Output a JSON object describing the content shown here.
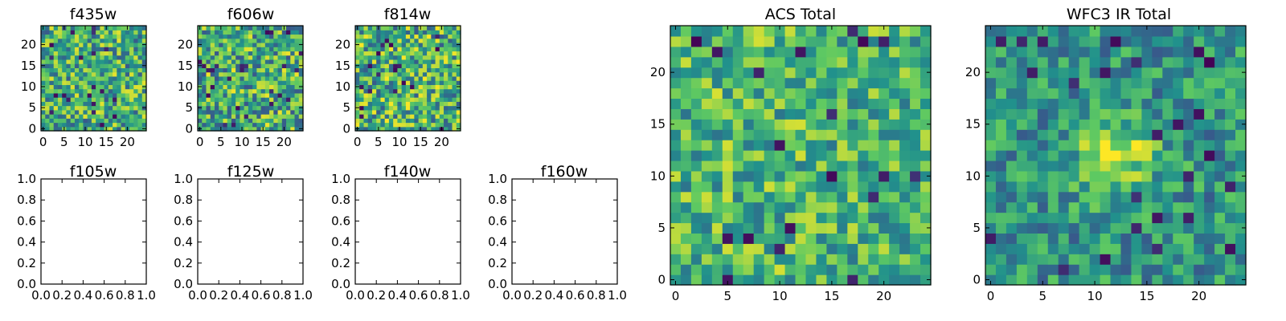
{
  "colormap": [
    "#440154",
    "#3b528b",
    "#21918c",
    "#5ec962",
    "#fde725"
  ],
  "chart_data": [
    {
      "type": "heatmap",
      "title": "f435w",
      "grid": [
        25,
        25
      ],
      "xlim": [
        -0.5,
        24.5
      ],
      "ylim": [
        -0.5,
        24.5
      ],
      "xticks": [
        0,
        5,
        10,
        15,
        20
      ],
      "yticks": [
        0,
        5,
        10,
        15,
        20
      ],
      "seed": 11,
      "bias": 0.62,
      "spread": 0.34
    },
    {
      "type": "heatmap",
      "title": "f606w",
      "grid": [
        25,
        25
      ],
      "xlim": [
        -0.5,
        24.5
      ],
      "ylim": [
        -0.5,
        24.5
      ],
      "xticks": [
        0,
        5,
        10,
        15,
        20
      ],
      "yticks": [
        0,
        5,
        10,
        15,
        20
      ],
      "seed": 23,
      "bias": 0.62,
      "spread": 0.36
    },
    {
      "type": "heatmap",
      "title": "f814w",
      "grid": [
        25,
        25
      ],
      "xlim": [
        -0.5,
        24.5
      ],
      "ylim": [
        -0.5,
        24.5
      ],
      "xticks": [
        0,
        5,
        10,
        15,
        20
      ],
      "yticks": [
        0,
        5,
        10,
        15,
        20
      ],
      "seed": 37,
      "bias": 0.64,
      "spread": 0.36
    },
    {
      "type": "empty",
      "title": "f105w",
      "xlim": [
        0,
        1
      ],
      "ylim": [
        0,
        1
      ],
      "xticks": [
        "0.0",
        "0.2",
        "0.4",
        "0.6",
        "0.8",
        "1.0"
      ],
      "yticks": [
        "0.0",
        "0.2",
        "0.4",
        "0.6",
        "0.8",
        "1.0"
      ]
    },
    {
      "type": "empty",
      "title": "f125w",
      "xlim": [
        0,
        1
      ],
      "ylim": [
        0,
        1
      ],
      "xticks": [
        "0.0",
        "0.2",
        "0.4",
        "0.6",
        "0.8",
        "1.0"
      ],
      "yticks": [
        "0.0",
        "0.2",
        "0.4",
        "0.6",
        "0.8",
        "1.0"
      ]
    },
    {
      "type": "empty",
      "title": "f140w",
      "xlim": [
        0,
        1
      ],
      "ylim": [
        0,
        1
      ],
      "xticks": [
        "0.0",
        "0.2",
        "0.4",
        "0.6",
        "0.8",
        "1.0"
      ],
      "yticks": [
        "0.0",
        "0.2",
        "0.4",
        "0.6",
        "0.8",
        "1.0"
      ]
    },
    {
      "type": "empty",
      "title": "f160w",
      "xlim": [
        0,
        1
      ],
      "ylim": [
        0,
        1
      ],
      "xticks": [
        "0.0",
        "0.2",
        "0.4",
        "0.6",
        "0.8",
        "1.0"
      ],
      "yticks": [
        "0.0",
        "0.2",
        "0.4",
        "0.6",
        "0.8",
        "1.0"
      ]
    },
    {
      "type": "heatmap",
      "title": "ACS Total",
      "grid": [
        25,
        25
      ],
      "xlim": [
        -0.5,
        24.5
      ],
      "ylim": [
        -0.5,
        24.5
      ],
      "xticks": [
        0,
        5,
        10,
        15,
        20
      ],
      "yticks": [
        0,
        5,
        10,
        15,
        20
      ],
      "seed": 53,
      "bias": 0.66,
      "spread": 0.28
    },
    {
      "type": "heatmap",
      "title": "WFC3 IR Total",
      "grid": [
        25,
        25
      ],
      "xlim": [
        -0.5,
        24.5
      ],
      "ylim": [
        -0.5,
        24.5
      ],
      "xticks": [
        0,
        5,
        10,
        15,
        20
      ],
      "yticks": [
        0,
        5,
        10,
        15,
        20
      ],
      "seed": 71,
      "bias": 0.52,
      "spread": 0.24,
      "peak": {
        "x": 12,
        "y": 12,
        "amp": 0.45,
        "sigma": 2.3
      }
    }
  ]
}
